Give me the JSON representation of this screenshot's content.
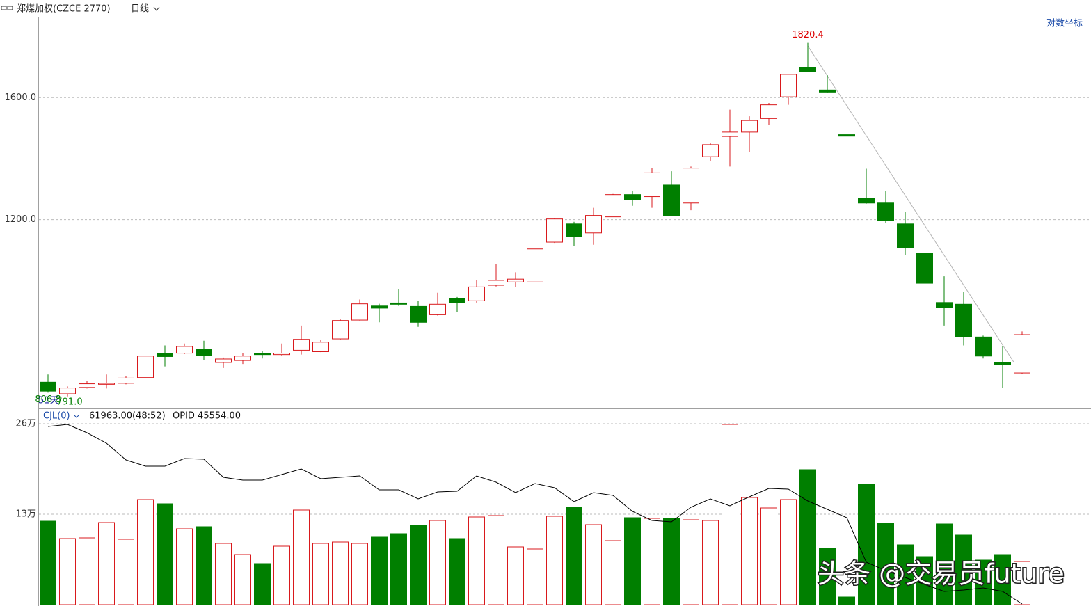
{
  "chart_data": [
    {
      "type": "candlestick",
      "title": "郑煤加权(CZCE 2770)",
      "period": "日线",
      "scale_button": "对数坐标",
      "log_scale": true,
      "grid": true,
      "up_color": "#d9191c",
      "down_color": "#007f00",
      "ylim": [
        769,
        1933
      ],
      "yticks": [
        {
          "value": 1200,
          "label": "1200.0"
        },
        {
          "value": 1600,
          "label": "1600.0"
        }
      ],
      "open": [
        818,
        796,
        808,
        814,
        816,
        827,
        876,
        876,
        884,
        857,
        861,
        876,
        873,
        882,
        879,
        906,
        947,
        979,
        986,
        978,
        959,
        997,
        991,
        1028,
        1036,
        1036,
        1138,
        1188,
        1163,
        1208,
        1273,
        1267,
        1302,
        1248,
        1392,
        1460,
        1475,
        1523,
        1603,
        1718,
        1629,
        1466,
        1262,
        1248,
        1188,
        1109,
        987,
        983,
        910,
        857,
        836
      ],
      "high": [
        833,
        810,
        821,
        833,
        830,
        871,
        892,
        896,
        902,
        867,
        876,
        880,
        896,
        935,
        903,
        950,
        994,
        984,
        1019,
        991,
        1010,
        1000,
        1040,
        1081,
        1060,
        1120,
        1204,
        1194,
        1234,
        1275,
        1284,
        1355,
        1345,
        1360,
        1437,
        1555,
        1531,
        1580,
        1690,
        1820.4,
        1687,
        1466,
        1353,
        1284,
        1222,
        1109,
        1050,
        1013,
        913,
        890,
        922
      ],
      "low": [
        798,
        791.0,
        806,
        806,
        814,
        827,
        849,
        874,
        862,
        846,
        854,
        865,
        870,
        873,
        878,
        903,
        946,
        942,
        979,
        932,
        957,
        965,
        987,
        1025,
        1024,
        1036,
        1136,
        1127,
        1131,
        1208,
        1240,
        1234,
        1210,
        1227,
        1378,
        1360,
        1407,
        1499,
        1573,
        1700,
        1618,
        1461,
        1246,
        1190,
        1105,
        1033,
        935,
        892,
        865,
        806.8,
        834
      ],
      "close": [
        801,
        807,
        815,
        816,
        826,
        870,
        869,
        890,
        871,
        864,
        870,
        873,
        876,
        905,
        899,
        946,
        984,
        974,
        983,
        942,
        983,
        987,
        1024,
        1040,
        1043,
        1120,
        1202,
        1154,
        1212,
        1273,
        1258,
        1340,
        1212,
        1355,
        1432,
        1475,
        1516,
        1573,
        1690,
        1700,
        1621,
        1461,
        1248,
        1198,
        1123,
        1033,
        976,
        910,
        870,
        852,
        915
      ],
      "max_label": "1820.4",
      "min_label": "806.8",
      "start_low_label": "791.0",
      "days_label": "51天"
    },
    {
      "type": "volume",
      "indicator": "CJL(0)",
      "status": "61963.00(48:52)",
      "oi_label": "OPID 45554.00",
      "ylim": [
        0,
        281000
      ],
      "grid": true,
      "yticks": [
        {
          "value": 130000,
          "label": "13万"
        },
        {
          "value": 260000,
          "label": "26万"
        }
      ],
      "values": [
        120000,
        95000,
        96000,
        118000,
        94000,
        151000,
        145000,
        109000,
        112000,
        88000,
        72000,
        59000,
        84000,
        136000,
        88000,
        90000,
        88000,
        97000,
        102000,
        114000,
        121000,
        95000,
        126000,
        128000,
        83000,
        80000,
        127000,
        140000,
        115000,
        92000,
        125000,
        124000,
        124000,
        122000,
        121000,
        259000,
        154000,
        139000,
        151000,
        194000,
        81000,
        11000,
        173000,
        117000,
        86000,
        69000,
        116000,
        100000,
        64000,
        72000,
        61963
      ],
      "line": {
        "color": "#000000",
        "values": [
          256000,
          259000,
          247000,
          232000,
          208000,
          199000,
          199000,
          210000,
          209000,
          183000,
          179000,
          179000,
          187000,
          195000,
          181000,
          183000,
          185000,
          165000,
          165000,
          152000,
          162000,
          163000,
          185000,
          176000,
          161000,
          174000,
          168000,
          148000,
          161000,
          157000,
          134000,
          121000,
          119000,
          140000,
          152000,
          142000,
          155000,
          167000,
          166000,
          149000,
          137000,
          125000,
          61000,
          49000,
          39000,
          29000,
          19000,
          21000,
          24000,
          19000,
          1000
        ]
      },
      "watermark": "头条 @交易员future"
    }
  ]
}
